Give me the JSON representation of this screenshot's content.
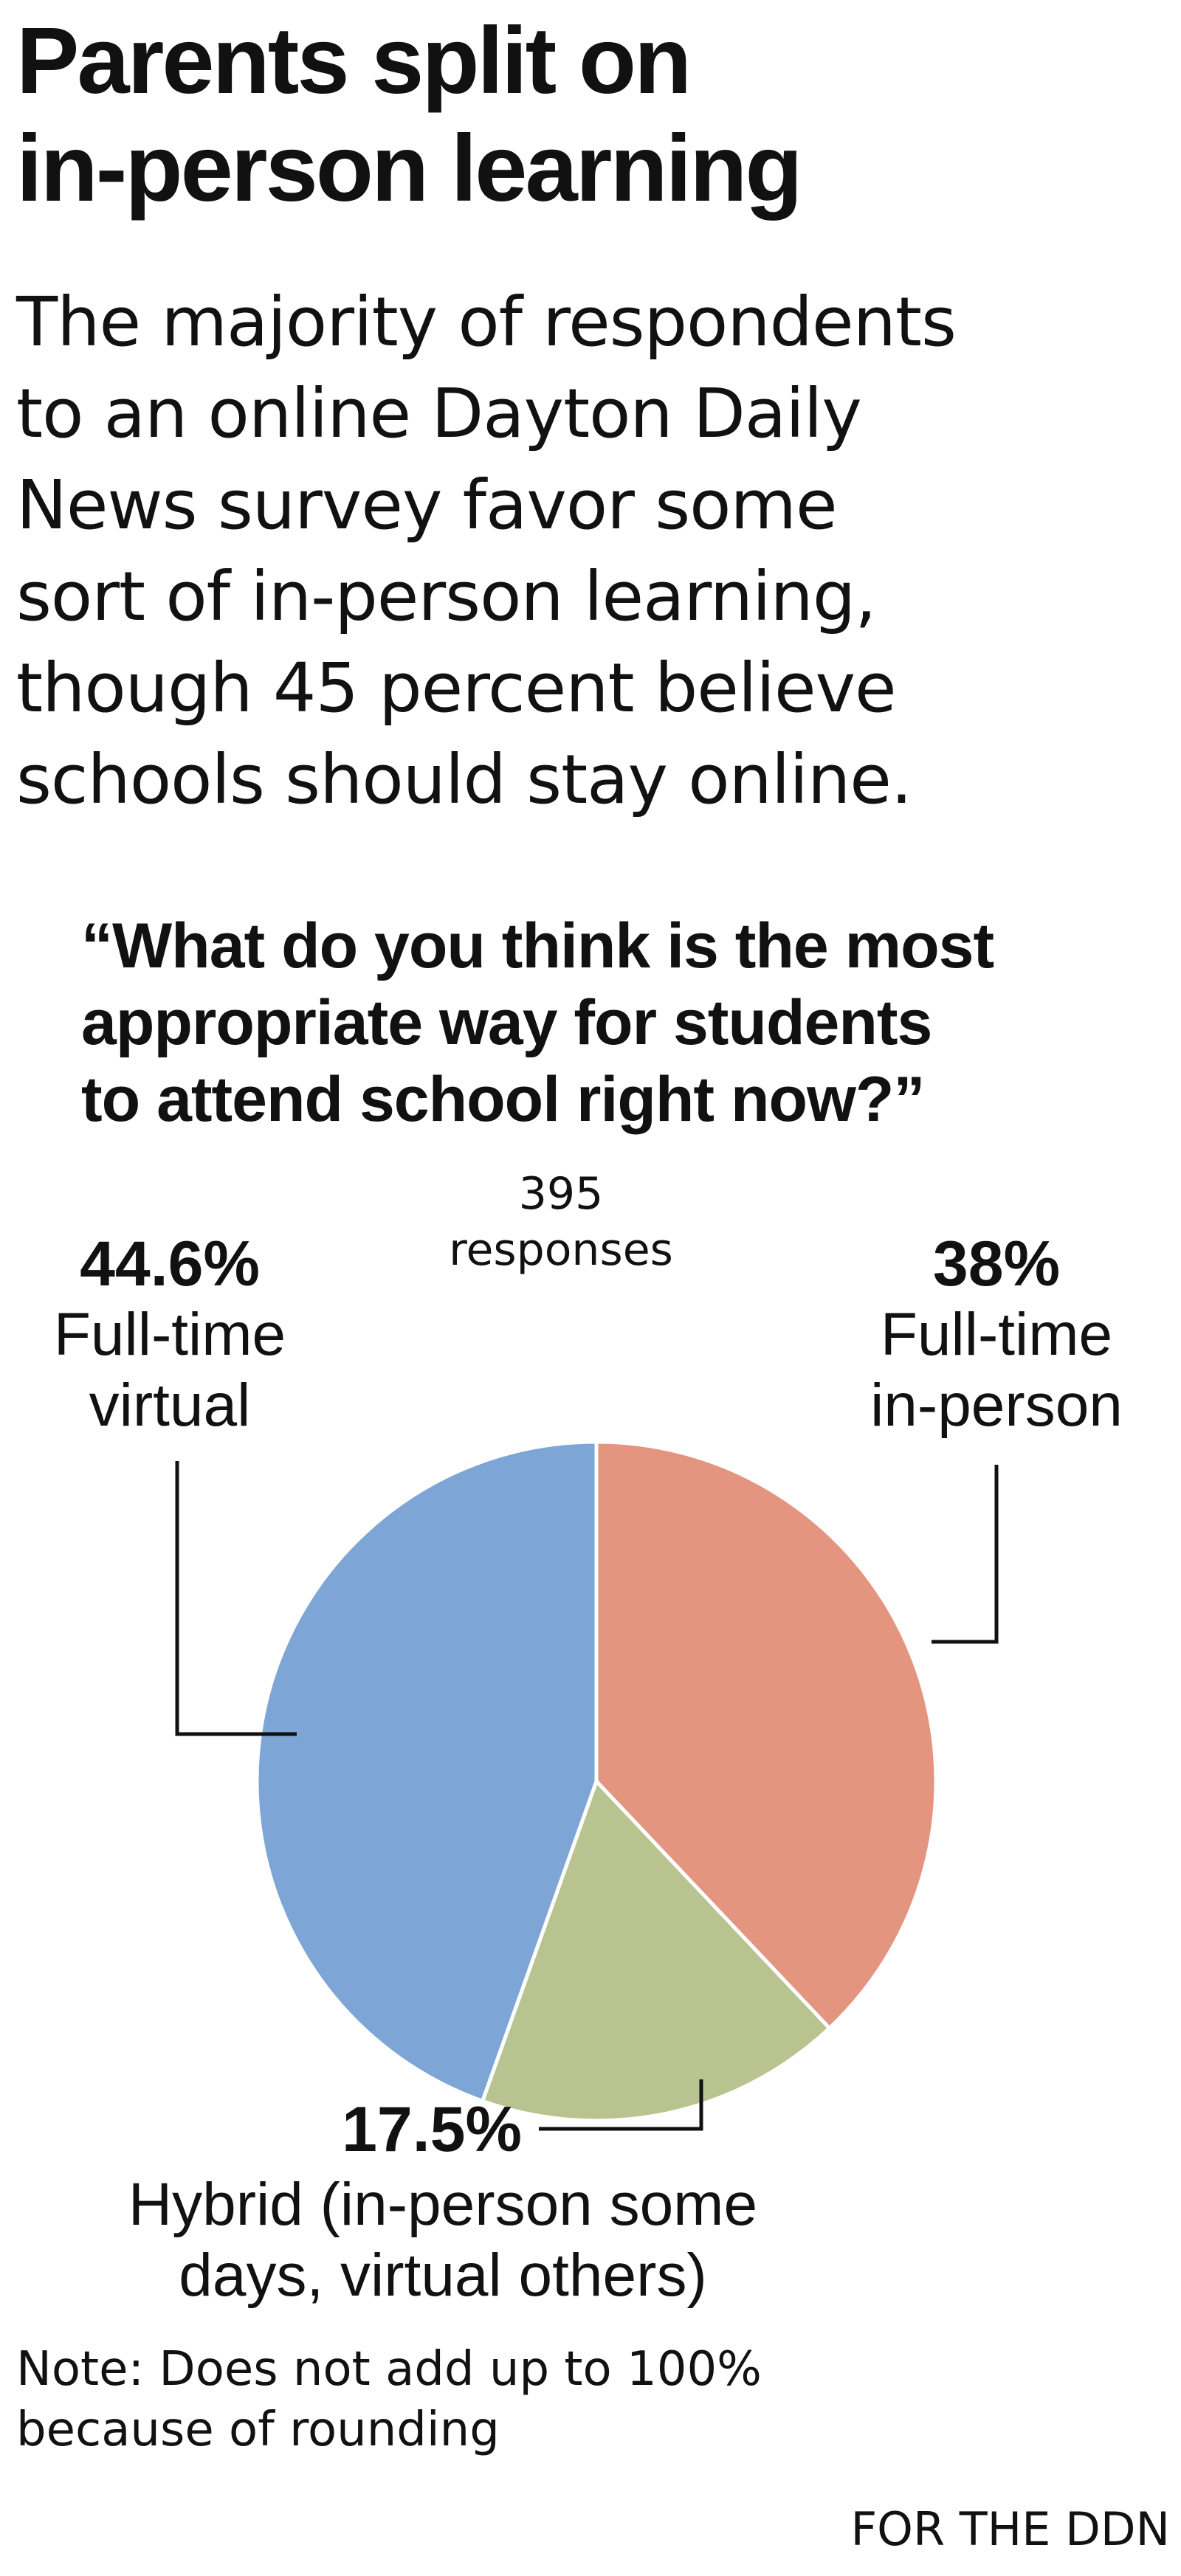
{
  "title_lines": [
    "Parents split on",
    "in-person learning"
  ],
  "subtitle_lines": [
    "The majority of respondents",
    "to an online Dayton Daily",
    "News survey favor some",
    "sort of in-person learning,",
    "though 45 percent believe",
    "schools should stay online."
  ],
  "question_lines": [
    "“What do you think is the most",
    "appropriate way for students",
    "to attend school right now?”"
  ],
  "responses_lines": [
    "395",
    "responses"
  ],
  "note_lines": [
    "Note: Does not add up to 100%",
    "because of rounding"
  ],
  "credit": "FOR THE DDN",
  "colors": {
    "full_time_in_person": "#e3957f",
    "hybrid": "#b8c38f",
    "full_time_virtual": "#7da5d6",
    "text": "#111111",
    "slice_border": "#ffffff"
  },
  "chart_data": {
    "type": "pie",
    "title": "“What do you think is the most appropriate way for students to attend school right now?”",
    "total_responses": 395,
    "start": "12 o'clock, clockwise",
    "slices": [
      {
        "label": "Full-time in-person",
        "value": 38,
        "value_label": "38%",
        "label_lines": [
          "Full-time",
          "in-person"
        ],
        "color": "#e3957f"
      },
      {
        "label": "Hybrid (in-person some days, virtual others)",
        "value": 17.5,
        "value_label": "17.5%",
        "label_lines": [
          "Hybrid (in-person some",
          "days, virtual others)"
        ],
        "color": "#b8c38f"
      },
      {
        "label": "Full-time virtual",
        "value": 44.6,
        "value_label": "44.6%",
        "label_lines": [
          "Full-time",
          "virtual"
        ],
        "color": "#7da5d6"
      }
    ]
  }
}
